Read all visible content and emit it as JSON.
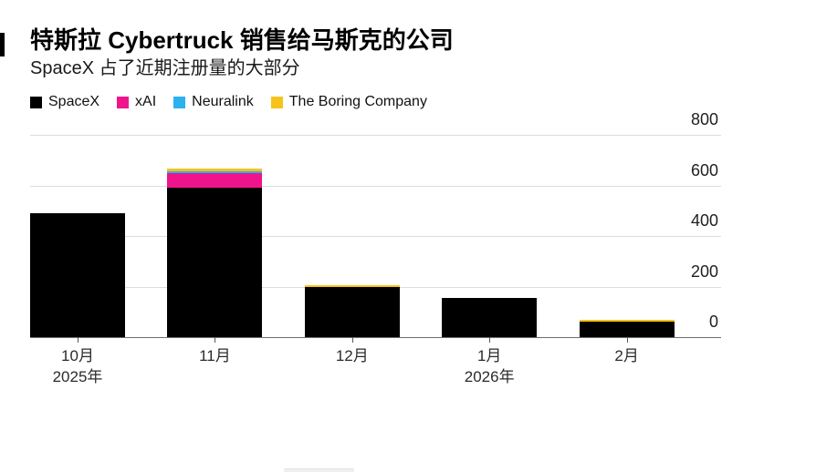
{
  "header": {
    "title": "特斯拉 Cybertruck 销售给马斯克的公司",
    "subtitle": "SpaceX 占了近期注册量的大部分"
  },
  "legend": {
    "items": [
      {
        "label": "SpaceX",
        "color": "#000000"
      },
      {
        "label": "xAI",
        "color": "#ef148c"
      },
      {
        "label": "Neuralink",
        "color": "#29b2ef"
      },
      {
        "label": "The Boring Company",
        "color": "#f6c31c"
      }
    ]
  },
  "chart_data": {
    "type": "bar",
    "stacked": true,
    "title": "特斯拉 Cybertruck 销售给马斯克的公司",
    "subtitle": "SpaceX 占了近期注册量的大部分",
    "categories": [
      {
        "month": "10月",
        "year": "2025年"
      },
      {
        "month": "11月",
        "year": ""
      },
      {
        "month": "12月",
        "year": ""
      },
      {
        "month": "1月",
        "year": "2026年"
      },
      {
        "month": "2月",
        "year": ""
      }
    ],
    "series": [
      {
        "name": "SpaceX",
        "color": "#000000",
        "values": [
          490,
          590,
          198,
          154,
          60
        ]
      },
      {
        "name": "xAI",
        "color": "#ef148c",
        "values": [
          0,
          57,
          0,
          0,
          0
        ]
      },
      {
        "name": "Neuralink",
        "color": "#29b2ef",
        "values": [
          0,
          9,
          0,
          0,
          0
        ]
      },
      {
        "name": "The Boring Company",
        "color": "#f6c31c",
        "values": [
          0,
          9,
          6,
          0,
          9
        ]
      }
    ],
    "ylim": [
      0,
      800
    ],
    "yticks": [
      0,
      200,
      400,
      600,
      800
    ],
    "ytick_labels": [
      "0",
      "200",
      "400",
      "600",
      "800"
    ],
    "grid": "horizontal",
    "legend_position": "top",
    "axis_side": "right"
  },
  "colors": {
    "gridline": "#dcdcdc",
    "axis_line": "#6e6e6e",
    "text_primary": "#000000",
    "text_secondary": "#1a1a1a"
  }
}
